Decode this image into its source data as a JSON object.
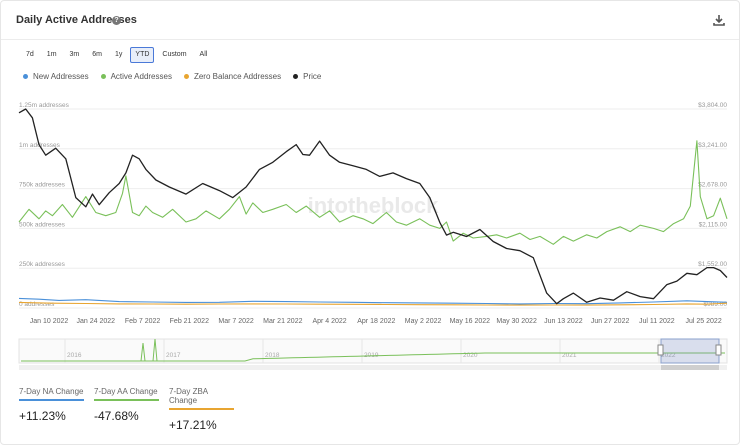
{
  "header": {
    "title": "Daily Active Addresses",
    "help_icon": "question-icon",
    "download_icon": "download-icon"
  },
  "ranges": [
    "7d",
    "1m",
    "3m",
    "6m",
    "1y",
    "YTD",
    "Custom",
    "All"
  ],
  "active_range": "YTD",
  "legend": [
    {
      "label": "New Addresses",
      "color": "#4a90d9"
    },
    {
      "label": "Active Addresses",
      "color": "#7ac05a"
    },
    {
      "label": "Zero Balance Addresses",
      "color": "#e8a531"
    },
    {
      "label": "Price",
      "color": "#222222"
    }
  ],
  "watermark": "intotheblock",
  "chart_data": {
    "type": "line",
    "y_left": {
      "ticks": [
        "0 addresses",
        "250k addresses",
        "500k addresses",
        "750k addresses",
        "1m addresses",
        "1.25m addresses"
      ],
      "range": [
        0,
        1250000
      ]
    },
    "y_right": {
      "ticks": [
        "$989.00",
        "$1,552.00",
        "$2,115.00",
        "$2,678.00",
        "$3,241.00",
        "$3,804.00"
      ],
      "range": [
        989,
        3804
      ]
    },
    "x_ticks": [
      "Jan 10 2022",
      "Jan 24 2022",
      "Feb 7 2022",
      "Feb 21 2022",
      "Mar 7 2022",
      "Mar 21 2022",
      "Apr 4 2022",
      "Apr 18 2022",
      "May 2 2022",
      "May 16 2022",
      "May 30 2022",
      "Jun 13 2022",
      "Jun 27 2022",
      "Jul 11 2022",
      "Jul 25 2022"
    ],
    "x_tick_days": [
      9,
      23,
      37,
      51,
      65,
      79,
      93,
      107,
      121,
      135,
      149,
      163,
      177,
      191,
      205
    ],
    "x_range_days": [
      0,
      212
    ],
    "grid": true,
    "legend_position": "top-left",
    "series": [
      {
        "name": "Active Addresses",
        "axis": "left",
        "color": "#7ac05a",
        "x": [
          0,
          3,
          6,
          8,
          10,
          13,
          16,
          20,
          23,
          26,
          29,
          31,
          32,
          34,
          36,
          38,
          40,
          43,
          46,
          50,
          53,
          56,
          60,
          63,
          66,
          68,
          70,
          73,
          76,
          80,
          83,
          86,
          90,
          93,
          96,
          100,
          103,
          106,
          110,
          113,
          116,
          120,
          123,
          126,
          128,
          130,
          133,
          136,
          140,
          143,
          146,
          150,
          153,
          156,
          160,
          163,
          166,
          170,
          173,
          176,
          180,
          183,
          186,
          190,
          193,
          196,
          199,
          201,
          203,
          204,
          206,
          208,
          210,
          212
        ],
        "y": [
          540000,
          620000,
          560000,
          610000,
          580000,
          650000,
          570000,
          700000,
          600000,
          580000,
          600000,
          720000,
          830000,
          600000,
          580000,
          640000,
          600000,
          570000,
          620000,
          540000,
          560000,
          610000,
          560000,
          620000,
          700000,
          590000,
          660000,
          600000,
          620000,
          650000,
          600000,
          640000,
          570000,
          610000,
          540000,
          580000,
          560000,
          530000,
          600000,
          540000,
          520000,
          560000,
          520000,
          500000,
          540000,
          420000,
          470000,
          440000,
          450000,
          460000,
          440000,
          470000,
          430000,
          450000,
          400000,
          450000,
          420000,
          460000,
          440000,
          480000,
          510000,
          480000,
          520000,
          500000,
          480000,
          530000,
          560000,
          640000,
          1050000,
          700000,
          560000,
          580000,
          690000,
          560000
        ]
      },
      {
        "name": "New Addresses",
        "axis": "left",
        "color": "#4a90d9",
        "x": [
          0,
          6,
          12,
          20,
          30,
          40,
          50,
          60,
          70,
          80,
          90,
          100,
          110,
          120,
          130,
          140,
          150,
          160,
          170,
          180,
          190,
          200,
          206,
          212
        ],
        "y": [
          60000,
          55000,
          48000,
          52000,
          40000,
          38000,
          35000,
          36000,
          42000,
          40000,
          38000,
          36000,
          33000,
          32000,
          30000,
          28000,
          26000,
          28000,
          27000,
          32000,
          38000,
          45000,
          40000,
          36000
        ]
      },
      {
        "name": "Zero Balance Addresses",
        "axis": "left",
        "color": "#e8a531",
        "x": [
          0,
          10,
          20,
          30,
          40,
          50,
          60,
          70,
          80,
          90,
          100,
          110,
          120,
          130,
          140,
          150,
          160,
          170,
          180,
          190,
          200,
          206,
          210,
          212
        ],
        "y": [
          35000,
          30000,
          28000,
          26000,
          25000,
          24000,
          25000,
          26000,
          25000,
          24000,
          23000,
          22000,
          21000,
          20000,
          19000,
          18000,
          19000,
          18000,
          20000,
          22000,
          26000,
          24000,
          28000,
          30000
        ]
      },
      {
        "name": "Price",
        "axis": "right",
        "color": "#222222",
        "x": [
          0,
          2,
          4,
          6,
          8,
          11,
          14,
          17,
          20,
          22,
          24,
          27,
          30,
          32,
          34,
          36,
          38,
          41,
          45,
          50,
          55,
          60,
          64,
          68,
          72,
          76,
          80,
          83,
          85,
          87,
          90,
          93,
          96,
          100,
          104,
          108,
          112,
          116,
          120,
          123,
          126,
          128,
          130,
          134,
          138,
          142,
          146,
          150,
          154,
          158,
          161,
          163,
          166,
          170,
          174,
          178,
          182,
          186,
          190,
          194,
          197,
          200,
          203,
          206,
          208,
          210,
          212
        ],
        "y": [
          3750,
          3804,
          3680,
          3300,
          3150,
          3250,
          3100,
          2550,
          2420,
          2600,
          2450,
          2620,
          2750,
          2900,
          3150,
          3100,
          2950,
          2800,
          2700,
          2600,
          2750,
          2650,
          2550,
          2700,
          2950,
          3050,
          3200,
          3300,
          3160,
          3150,
          3350,
          3150,
          3050,
          3000,
          2950,
          2850,
          2900,
          2820,
          2750,
          2550,
          2200,
          2020,
          2060,
          2000,
          2100,
          1930,
          1830,
          1800,
          1700,
          1200,
          1050,
          1120,
          1200,
          1070,
          1130,
          1100,
          1220,
          1150,
          1120,
          1320,
          1370,
          1480,
          1460,
          1560,
          1560,
          1520,
          1420
        ]
      }
    ]
  },
  "navigator": {
    "years": [
      "2016",
      "2017",
      "2018",
      "2019",
      "2020",
      "2021",
      "2022"
    ]
  },
  "stats": [
    {
      "label": "7-Day NA Change",
      "value": "+11.23%",
      "color": "#4a90d9"
    },
    {
      "label": "7-Day AA Change",
      "value": "-47.68%",
      "color": "#7ac05a"
    },
    {
      "label": "7-Day ZBA Change",
      "value": "+17.21%",
      "color": "#e8a531"
    }
  ]
}
